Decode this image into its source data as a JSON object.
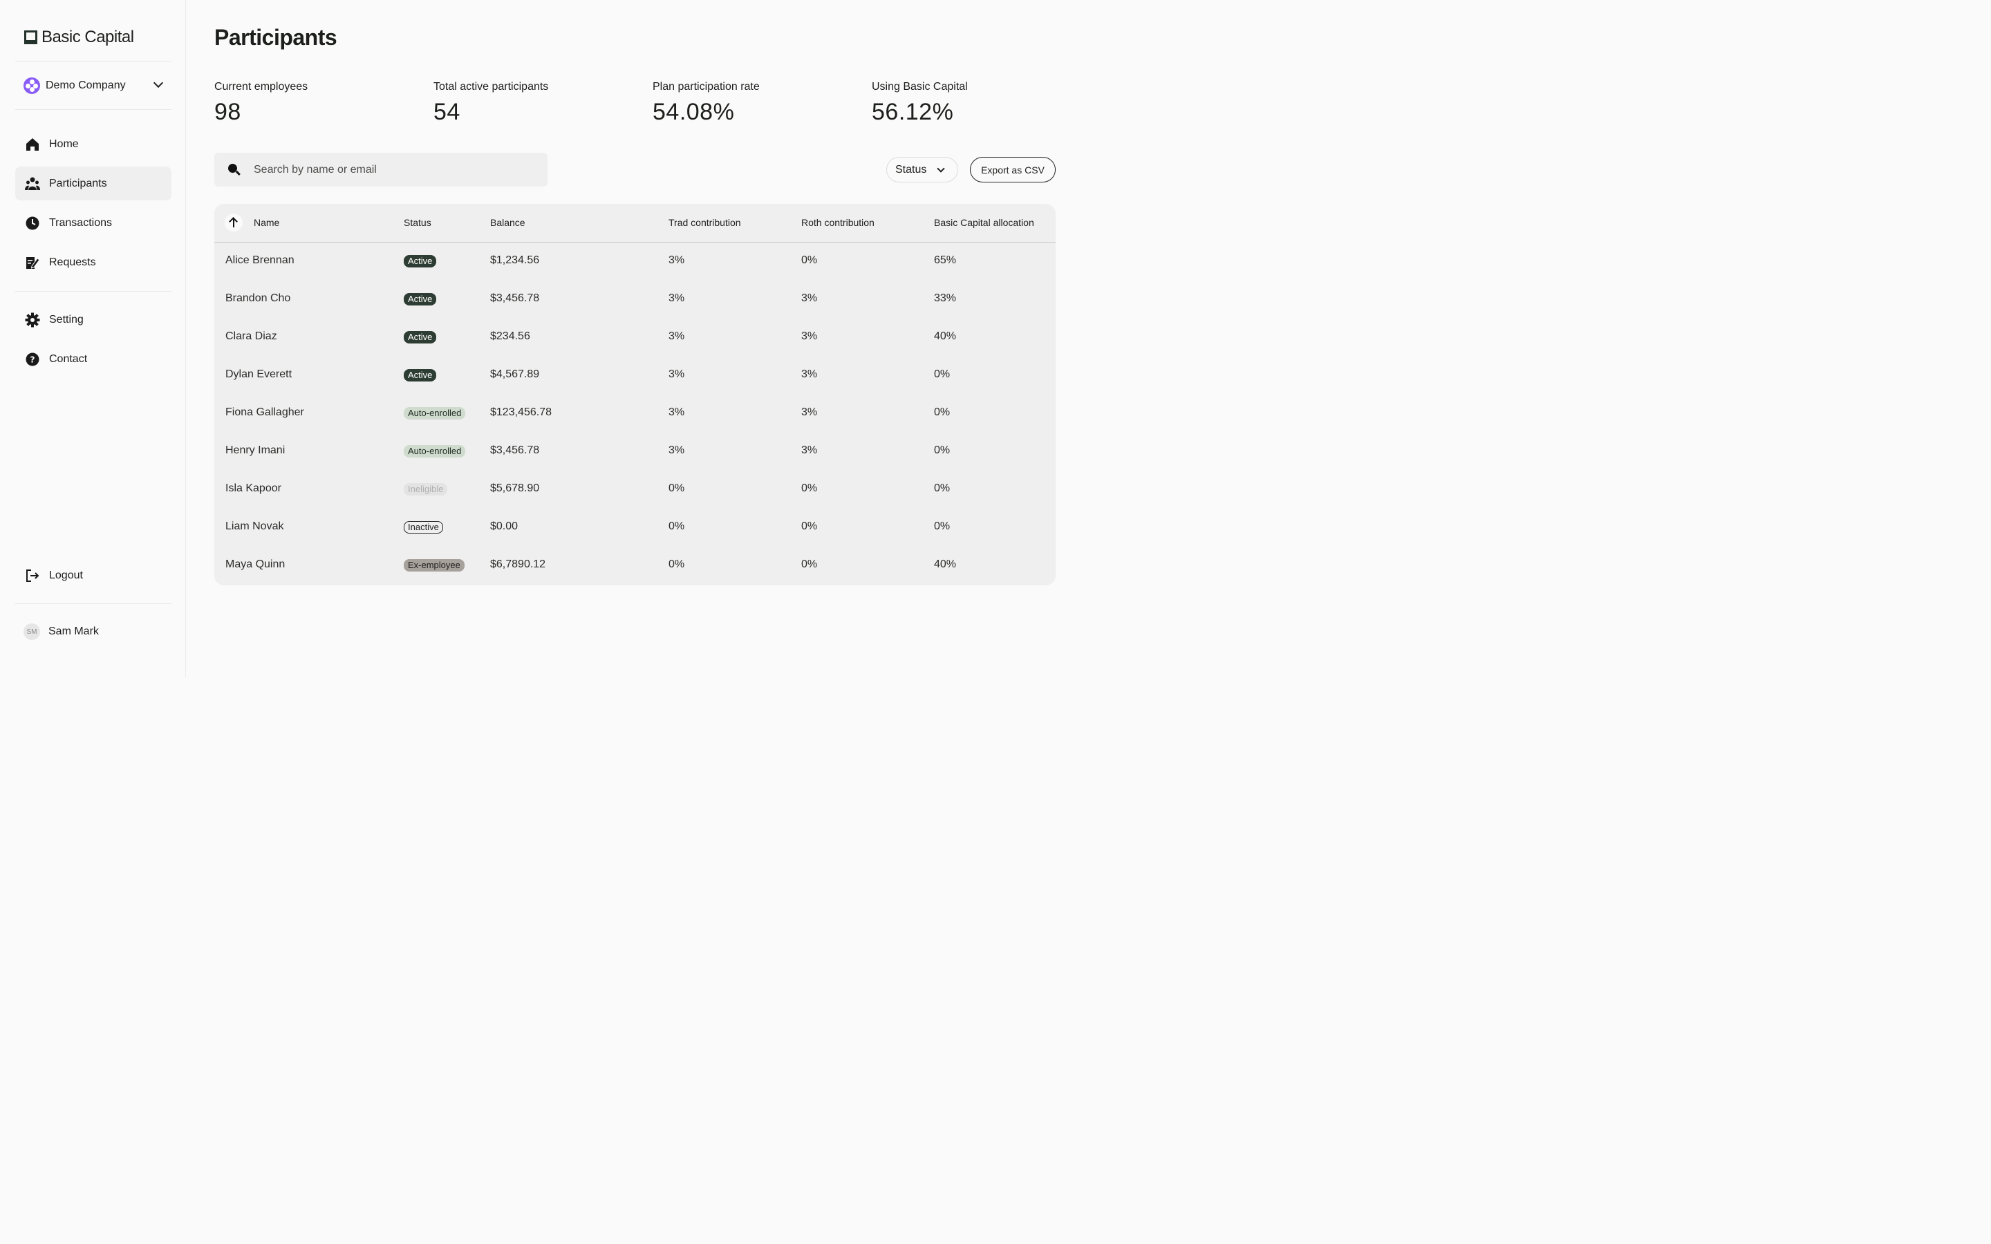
{
  "brand": {
    "name": "Basic Capital"
  },
  "company": {
    "name": "Demo Company"
  },
  "nav": {
    "home": "Home",
    "participants": "Participants",
    "transactions": "Transactions",
    "requests": "Requests",
    "setting": "Setting",
    "contact": "Contact",
    "logout": "Logout"
  },
  "user": {
    "initials": "SM",
    "name": "Sam Mark"
  },
  "page": {
    "title": "Participants"
  },
  "stats": [
    {
      "label": "Current employees",
      "value": "98"
    },
    {
      "label": "Total active participants",
      "value": "54"
    },
    {
      "label": "Plan participation rate",
      "value": "54.08%"
    },
    {
      "label": "Using Basic Capital",
      "value": "56.12%"
    }
  ],
  "search": {
    "placeholder": "Search by name or email"
  },
  "filters": {
    "status_label": "Status",
    "export_label": "Export as CSV"
  },
  "table": {
    "columns": [
      "Name",
      "Status",
      "Balance",
      "Trad contribution",
      "Roth contribution",
      "Basic Capital allocation"
    ],
    "rows": [
      {
        "name": "Alice Brennan",
        "status": "Active",
        "balance": "$1,234.56",
        "trad": "3%",
        "roth": "0%",
        "alloc": "65%"
      },
      {
        "name": "Brandon Cho",
        "status": "Active",
        "balance": "$3,456.78",
        "trad": "3%",
        "roth": "3%",
        "alloc": "33%"
      },
      {
        "name": "Clara Diaz",
        "status": "Active",
        "balance": "$234.56",
        "trad": "3%",
        "roth": "3%",
        "alloc": "40%"
      },
      {
        "name": "Dylan Everett",
        "status": "Active",
        "balance": "$4,567.89",
        "trad": "3%",
        "roth": "3%",
        "alloc": "0%"
      },
      {
        "name": "Fiona Gallagher",
        "status": "Auto-enrolled",
        "balance": "$123,456.78",
        "trad": "3%",
        "roth": "3%",
        "alloc": "0%"
      },
      {
        "name": "Henry Imani",
        "status": "Auto-enrolled",
        "balance": "$3,456.78",
        "trad": "3%",
        "roth": "3%",
        "alloc": "0%"
      },
      {
        "name": "Isla Kapoor",
        "status": "Ineligible",
        "balance": "$5,678.90",
        "trad": "0%",
        "roth": "0%",
        "alloc": "0%"
      },
      {
        "name": "Liam Novak",
        "status": "Inactive",
        "balance": "$0.00",
        "trad": "0%",
        "roth": "0%",
        "alloc": "0%"
      },
      {
        "name": "Maya Quinn",
        "status": "Ex-employee",
        "balance": "$6,7890.12",
        "trad": "0%",
        "roth": "0%",
        "alloc": "40%"
      }
    ]
  }
}
